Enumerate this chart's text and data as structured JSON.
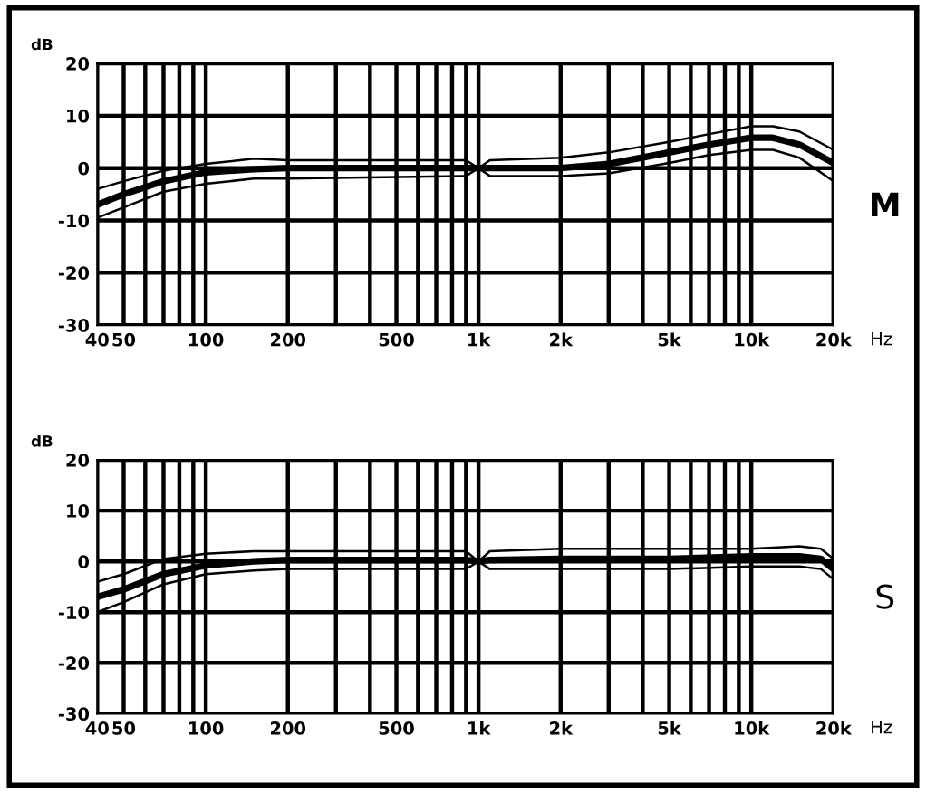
{
  "chart_data": [
    {
      "type": "line",
      "ylabel": "dB",
      "xlabel": "Hz",
      "annotations": [
        "M"
      ],
      "log": "x",
      "xlim": [
        40,
        20000
      ],
      "ylim": [
        -30,
        20
      ],
      "xticks": [
        40,
        50,
        {
          "value": 60,
          "label": null
        },
        {
          "value": 70,
          "label": null
        },
        {
          "value": 80,
          "label": null
        },
        {
          "value": 90,
          "label": null
        },
        100,
        200,
        {
          "value": 300,
          "label": null
        },
        {
          "value": 400,
          "label": null
        },
        500,
        {
          "value": 600,
          "label": null
        },
        {
          "value": 700,
          "label": null
        },
        {
          "value": 800,
          "label": null
        },
        {
          "value": 900,
          "label": null
        },
        {
          "value": 1000,
          "label": "1k"
        },
        {
          "value": 2000,
          "label": "2k"
        },
        {
          "value": 3000,
          "label": null
        },
        {
          "value": 4000,
          "label": null
        },
        {
          "value": 5000,
          "label": "5k"
        },
        {
          "value": 6000,
          "label": null
        },
        {
          "value": 7000,
          "label": null
        },
        {
          "value": 8000,
          "label": null
        },
        {
          "value": 9000,
          "label": null
        },
        {
          "value": 10000,
          "label": "10k"
        },
        {
          "value": 20000,
          "label": "20k"
        }
      ],
      "yticks": [
        -30,
        -20,
        -10,
        0,
        10,
        20
      ],
      "grid": true,
      "x": [
        40,
        50,
        70,
        100,
        150,
        200,
        900,
        1000,
        1100,
        2000,
        3000,
        5000,
        7000,
        10000,
        12000,
        15000,
        20000
      ],
      "series": [
        {
          "color": "#000000",
          "values": [
            -7,
            -5,
            -2.5,
            -0.8,
            -0.2,
            0,
            0,
            0,
            0,
            0,
            0.8,
            3,
            4.5,
            5.8,
            5.8,
            4.5,
            1
          ]
        },
        {
          "color": "#000000",
          "values": [
            -4,
            -2.5,
            -0.5,
            0.8,
            1.8,
            1.5,
            1.5,
            0,
            1.5,
            2,
            3,
            5,
            6.5,
            8,
            8,
            7,
            3.5
          ]
        },
        {
          "color": "#000000",
          "values": [
            -9.5,
            -7.5,
            -4.5,
            -3,
            -2,
            -2,
            -1.5,
            0,
            -1.5,
            -1.5,
            -1,
            1,
            2.5,
            3.5,
            3.5,
            2,
            -2.5
          ]
        }
      ]
    },
    {
      "type": "line",
      "ylabel": "dB",
      "xlabel": "Hz",
      "annotations": [
        "S"
      ],
      "log": "x",
      "xlim": [
        40,
        20000
      ],
      "ylim": [
        -30,
        20
      ],
      "xticks": [
        40,
        50,
        {
          "value": 60,
          "label": null
        },
        {
          "value": 70,
          "label": null
        },
        {
          "value": 80,
          "label": null
        },
        {
          "value": 90,
          "label": null
        },
        100,
        200,
        {
          "value": 300,
          "label": null
        },
        {
          "value": 400,
          "label": null
        },
        500,
        {
          "value": 600,
          "label": null
        },
        {
          "value": 700,
          "label": null
        },
        {
          "value": 800,
          "label": null
        },
        {
          "value": 900,
          "label": null
        },
        {
          "value": 1000,
          "label": "1k"
        },
        {
          "value": 2000,
          "label": "2k"
        },
        {
          "value": 3000,
          "label": null
        },
        {
          "value": 4000,
          "label": null
        },
        {
          "value": 5000,
          "label": "5k"
        },
        {
          "value": 6000,
          "label": null
        },
        {
          "value": 7000,
          "label": null
        },
        {
          "value": 8000,
          "label": null
        },
        {
          "value": 9000,
          "label": null
        },
        {
          "value": 10000,
          "label": "10k"
        },
        {
          "value": 20000,
          "label": "20k"
        }
      ],
      "yticks": [
        -30,
        -20,
        -10,
        0,
        10,
        20
      ],
      "grid": true,
      "x": [
        40,
        50,
        70,
        100,
        150,
        200,
        900,
        1000,
        1100,
        2000,
        5000,
        10000,
        15000,
        18000,
        20000
      ],
      "series": [
        {
          "color": "#000000",
          "values": [
            -7,
            -5.5,
            -2.5,
            -0.8,
            0,
            0.3,
            0.3,
            0,
            0.3,
            0.5,
            0.5,
            1,
            1,
            0.5,
            -1.5
          ]
        },
        {
          "color": "#000000",
          "values": [
            -4,
            -2.5,
            0.5,
            1.5,
            2,
            2,
            2,
            0,
            2,
            2.5,
            2.5,
            2.5,
            3,
            2.5,
            0.5
          ]
        },
        {
          "color": "#000000",
          "values": [
            -10,
            -8,
            -4.5,
            -2.5,
            -1.8,
            -1.5,
            -1.5,
            0,
            -1.5,
            -1.5,
            -1.5,
            -1,
            -1,
            -1.5,
            -3.5
          ]
        }
      ]
    }
  ]
}
